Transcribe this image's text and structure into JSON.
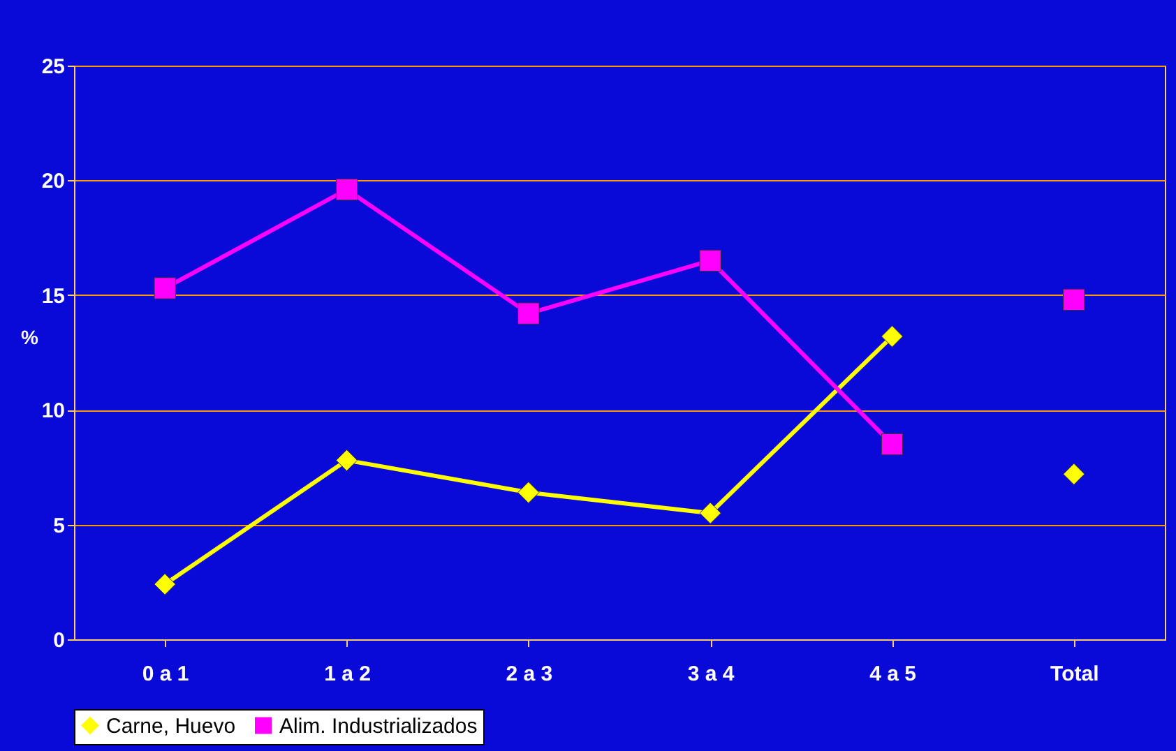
{
  "chart_data": {
    "type": "line",
    "ylabel": "%",
    "categories": [
      "0 a 1",
      "1 a 2",
      "2 a 3",
      "3 a 4",
      "4 a 5",
      "Total"
    ],
    "series": [
      {
        "name": "Carne, Huevo",
        "color": "#ffff00",
        "marker": "diamond",
        "x": [
          "0 a 1",
          "1 a 2",
          "2 a 3",
          "3 a 4",
          "4 a 5"
        ],
        "values": [
          2.4,
          7.8,
          6.4,
          5.5,
          13.2
        ]
      },
      {
        "name": "Alim. Industrializados",
        "color": "#ff00ff",
        "marker": "square",
        "x": [
          "0 a 1",
          "1 a 2",
          "2 a 3",
          "3 a 4",
          "4 a 5"
        ],
        "values": [
          15.3,
          19.6,
          14.2,
          16.5,
          8.5
        ]
      },
      {
        "type": "scatter",
        "color": "#ffff00",
        "marker": "diamond",
        "x": [
          "Total"
        ],
        "values": [
          7.2
        ]
      },
      {
        "type": "scatter",
        "color": "#ff00ff",
        "marker": "square",
        "x": [
          "Total"
        ],
        "values": [
          14.8
        ]
      }
    ],
    "ylim": [
      0,
      25
    ],
    "yticks": [
      0,
      5,
      10,
      15,
      20,
      25
    ],
    "grid": "y",
    "legend": "bottom"
  }
}
